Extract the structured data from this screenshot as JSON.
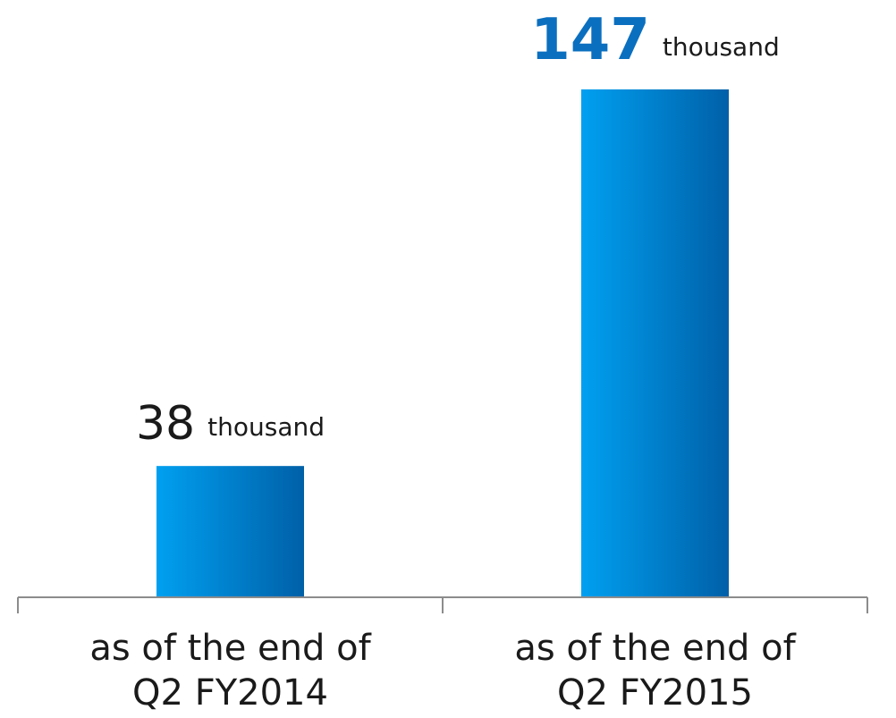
{
  "chart_data": {
    "type": "bar",
    "categories": [
      [
        "as of the end of",
        "Q2 FY2014"
      ],
      [
        "as of the end of",
        "Q2 FY2015"
      ]
    ],
    "values": [
      38,
      147
    ],
    "data_labels": [
      {
        "value": "38",
        "unit": "thousand",
        "highlight": false
      },
      {
        "value": "147",
        "unit": "thousand",
        "highlight": true
      }
    ],
    "title": "",
    "xlabel": "",
    "ylabel": "",
    "ylim": [
      0,
      147
    ],
    "grid": false,
    "legend": "none",
    "colors": {
      "bar_light": "#00a0f0",
      "bar_dark": "#0060a8",
      "highlight_text": "#0b6fbf",
      "axis": "#8c8c8c"
    }
  }
}
